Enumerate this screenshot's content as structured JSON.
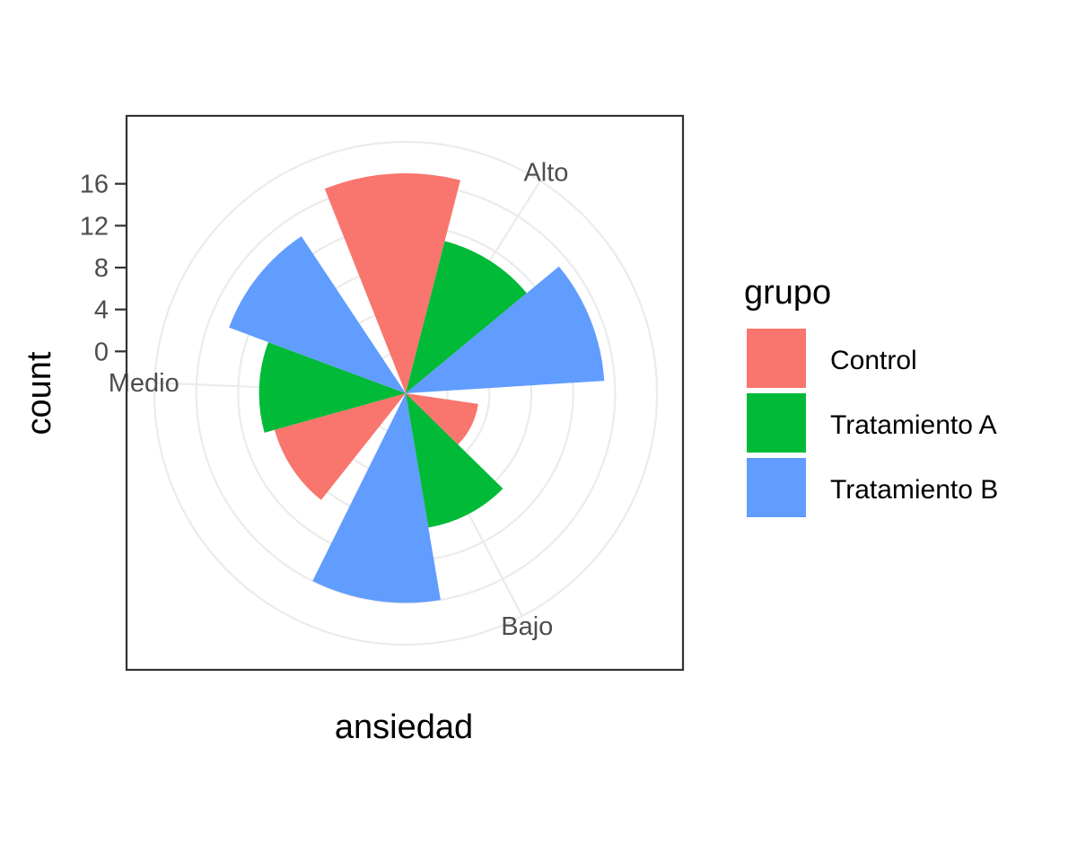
{
  "chart_data": {
    "type": "bar",
    "coord": "polar",
    "title": "",
    "xlabel": "ansiedad",
    "ylabel": "count",
    "categories": [
      "Alto",
      "Bajo",
      "Medio"
    ],
    "series": [
      {
        "name": "Control",
        "color": "#F8766D",
        "values": [
          17,
          3,
          9
        ]
      },
      {
        "name": "Tratamiento A",
        "color": "#00BA38",
        "values": [
          11,
          9,
          10
        ]
      },
      {
        "name": "Tratamiento B",
        "color": "#619CFF",
        "values": [
          15,
          16,
          14
        ]
      }
    ],
    "yticks": [
      0,
      4,
      8,
      12,
      16
    ],
    "ylim": [
      -4,
      20
    ],
    "grid": true,
    "legend": {
      "title": "grupo",
      "placement": "right",
      "items": [
        "Control",
        "Tratamiento A",
        "Tratamiento B"
      ]
    }
  }
}
